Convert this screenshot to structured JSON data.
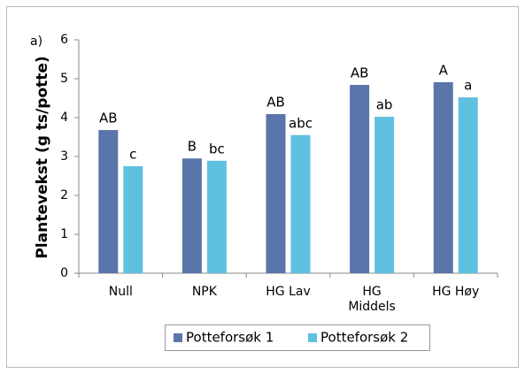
{
  "chart_data": {
    "type": "bar",
    "annotation": "a)",
    "ylabel": "Plantevekst (g ts/potte)",
    "categories": [
      "Null",
      "NPK",
      "HG Lav",
      "HG\nMiddels",
      "HG Høy"
    ],
    "series": [
      {
        "name": "Potteforsøk 1",
        "color": "#5a75aa",
        "values": [
          3.68,
          2.95,
          4.09,
          4.84,
          4.91
        ],
        "labels": [
          "AB",
          "B",
          "AB",
          "AB",
          "A"
        ]
      },
      {
        "name": "Potteforsøk 2",
        "color": "#5fc0e0",
        "values": [
          2.75,
          2.89,
          3.55,
          4.02,
          4.52
        ],
        "labels": [
          "c",
          "bc",
          "abc",
          "ab",
          "a"
        ]
      }
    ],
    "ylim": [
      0,
      6
    ],
    "yticks": [
      0,
      1,
      2,
      3,
      4,
      5,
      6
    ],
    "legend": "bottom"
  }
}
